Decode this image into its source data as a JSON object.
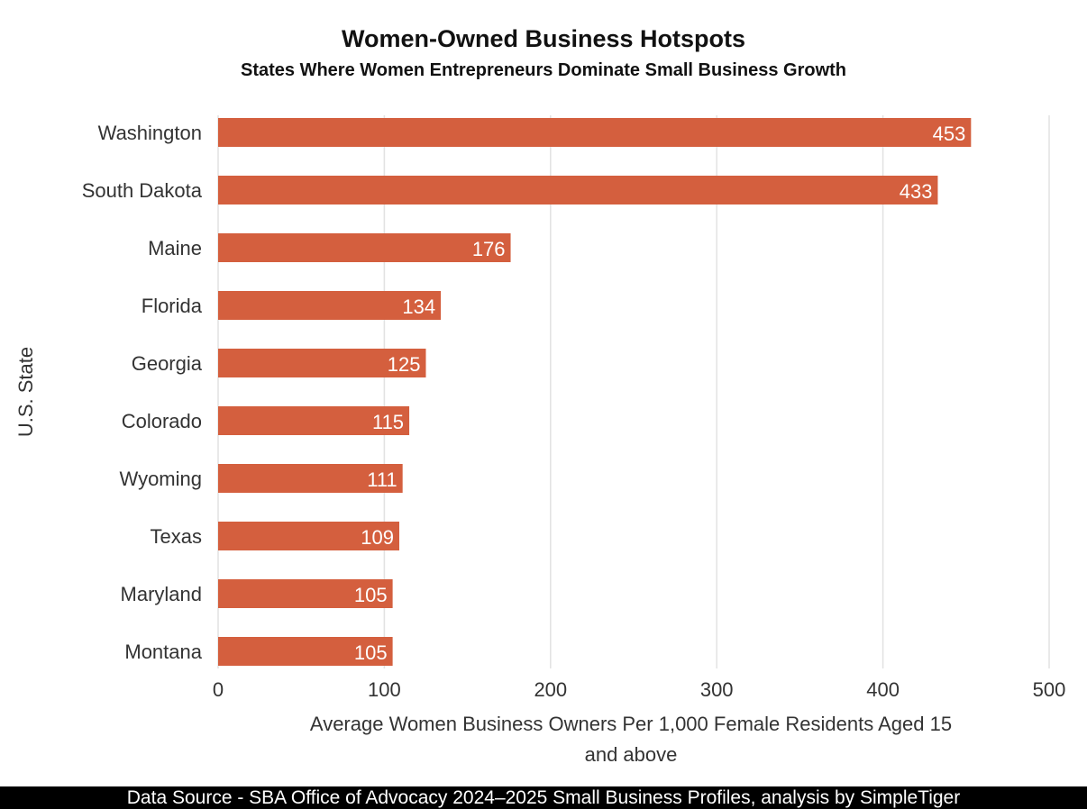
{
  "chart_data": {
    "type": "bar",
    "orientation": "horizontal",
    "title": "Women-Owned Business Hotspots",
    "subtitle": "States Where Women Entrepreneurs Dominate Small Business Growth",
    "xlabel": "Average Women Business Owners Per 1,000 Female Residents Aged 15 and above",
    "ylabel": "U.S. State",
    "categories": [
      "Washington",
      "South Dakota",
      "Maine",
      "Florida",
      "Georgia",
      "Colorado",
      "Wyoming",
      "Texas",
      "Maryland",
      "Montana"
    ],
    "values": [
      453,
      433,
      176,
      134,
      125,
      115,
      111,
      109,
      105,
      105
    ],
    "xlim": [
      0,
      500
    ],
    "xticks": [
      0,
      100,
      200,
      300,
      400,
      500
    ],
    "grid": true,
    "data_labels": true,
    "bar_color": "#D45F3E"
  },
  "footer": "Data Source - SBA Office of Advocacy 2024–2025 Small Business Profiles, analysis by SimpleTiger"
}
